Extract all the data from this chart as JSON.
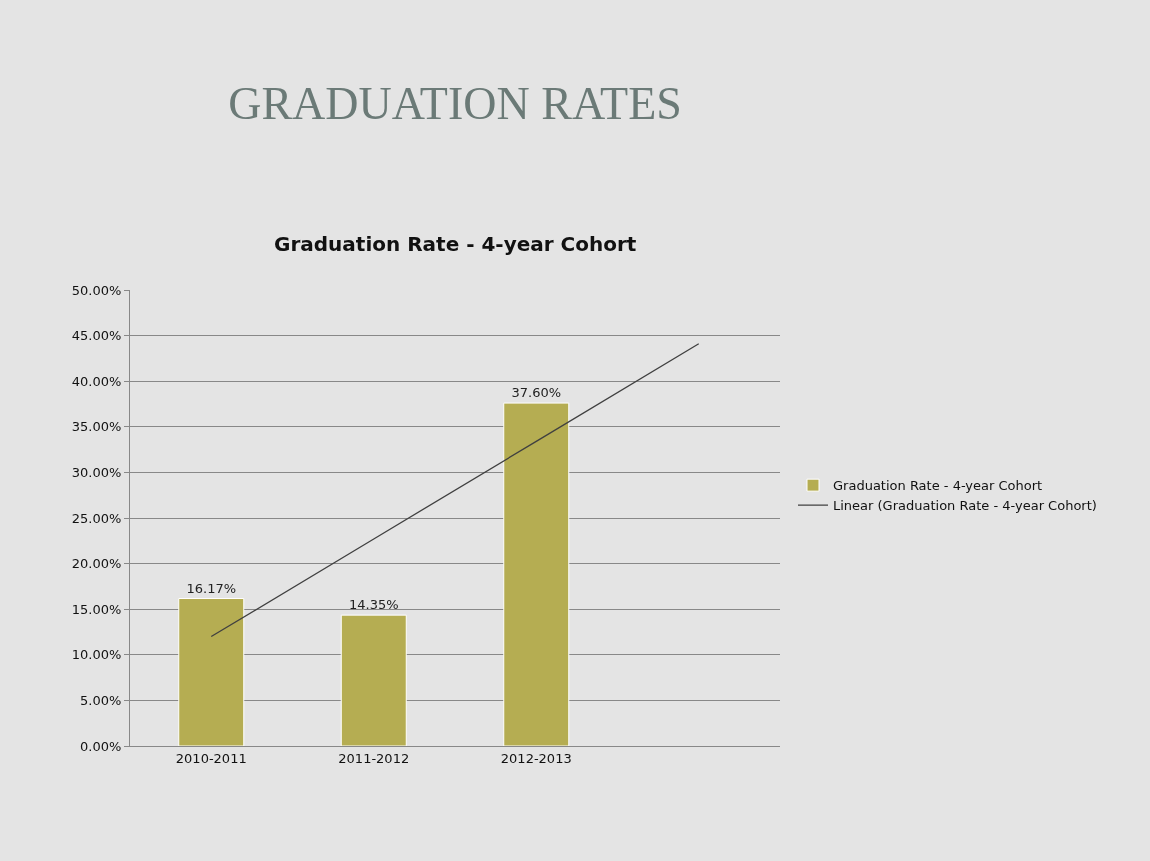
{
  "chart_data": {
    "type": "bar",
    "title": "GRADUATION RATES",
    "subtitle": "Graduation Rate - 4-year Cohort",
    "categories": [
      "2010-2011",
      "2011-2012",
      "2012-2013",
      null
    ],
    "series": [
      {
        "name": "Graduation Rate - 4-year Cohort",
        "color": "#b5ad52",
        "values": [
          16.17,
          14.35,
          37.6,
          null
        ],
        "value_labels": [
          "16.17%",
          "14.35%",
          "37.60%",
          null
        ]
      },
      {
        "name": "Linear (Graduation Rate - 4-year Cohort)",
        "type": "line",
        "color": "#404040",
        "values": [
          12,
          22.7,
          33.4,
          44.1
        ]
      }
    ],
    "ylim": [
      0,
      50
    ],
    "yticks": [
      {
        "value": 0,
        "label": "0.00%"
      },
      {
        "value": 5,
        "label": "5.00%"
      },
      {
        "value": 10,
        "label": "10.00%"
      },
      {
        "value": 15,
        "label": "15.00%"
      },
      {
        "value": 20,
        "label": "20.00%"
      },
      {
        "value": 25,
        "label": "25.00%"
      },
      {
        "value": 30,
        "label": "30.00%"
      },
      {
        "value": 35,
        "label": "35.00%"
      },
      {
        "value": 40,
        "label": "40.00%"
      },
      {
        "value": 45,
        "label": "45.00%"
      },
      {
        "value": 50,
        "label": "50.00%"
      }
    ],
    "grid": "y",
    "legend": "right",
    "marker": "none",
    "line_style": "solid"
  }
}
